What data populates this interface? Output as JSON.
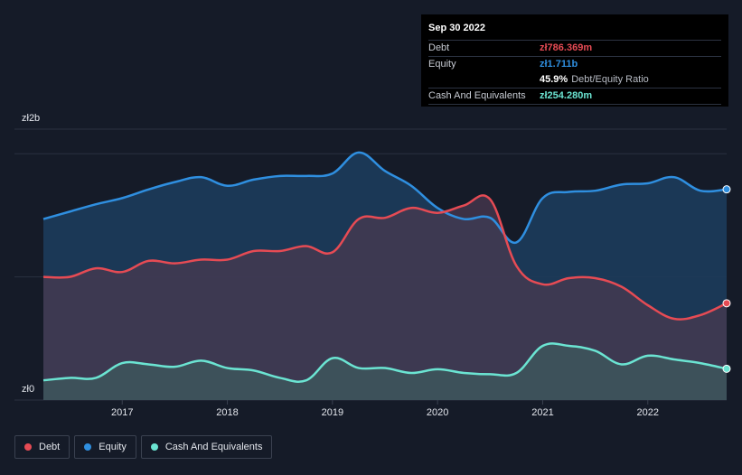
{
  "tooltip": {
    "date": "Sep 30 2022",
    "debt_label": "Debt",
    "debt_value": "zł786.369m",
    "equity_label": "Equity",
    "equity_value": "zł1.711b",
    "ratio_value": "45.9%",
    "ratio_label": "Debt/Equity Ratio",
    "cash_label": "Cash And Equivalents",
    "cash_value": "zł254.280m"
  },
  "colors": {
    "debt": "#e64b54",
    "equity": "#2f8fe0",
    "cash": "#6be4d2",
    "background": "#151b28",
    "tooltip_bg": "#000000"
  },
  "legend": {
    "debt": "Debt",
    "equity": "Equity",
    "cash": "Cash And Equivalents"
  },
  "chart_data": {
    "type": "area",
    "y_top_label": "zł2b",
    "y_bottom_label": "zł0",
    "ylim": [
      0,
      2.2
    ],
    "xlim": [
      2016.25,
      2022.75
    ],
    "x_ticks": [
      "2017",
      "2018",
      "2019",
      "2020",
      "2021",
      "2022"
    ],
    "grid": true,
    "series": [
      {
        "name": "Equity",
        "x": [
          2016.25,
          2016.5,
          2016.75,
          2017.0,
          2017.25,
          2017.5,
          2017.75,
          2018.0,
          2018.25,
          2018.5,
          2018.75,
          2019.0,
          2019.25,
          2019.5,
          2019.75,
          2020.0,
          2020.25,
          2020.5,
          2020.75,
          2021.0,
          2021.25,
          2021.5,
          2021.75,
          2022.0,
          2022.25,
          2022.5,
          2022.75
        ],
        "values": [
          1.47,
          1.53,
          1.59,
          1.64,
          1.71,
          1.77,
          1.81,
          1.74,
          1.79,
          1.82,
          1.82,
          1.84,
          2.01,
          1.86,
          1.74,
          1.56,
          1.47,
          1.48,
          1.28,
          1.64,
          1.69,
          1.7,
          1.75,
          1.76,
          1.81,
          1.7,
          1.711
        ]
      },
      {
        "name": "Debt",
        "x": [
          2016.25,
          2016.5,
          2016.75,
          2017.0,
          2017.25,
          2017.5,
          2017.75,
          2018.0,
          2018.25,
          2018.5,
          2018.75,
          2019.0,
          2019.25,
          2019.5,
          2019.75,
          2020.0,
          2020.25,
          2020.5,
          2020.75,
          2021.0,
          2021.25,
          2021.5,
          2021.75,
          2022.0,
          2022.25,
          2022.5,
          2022.75
        ],
        "values": [
          1.0,
          1.0,
          1.07,
          1.04,
          1.13,
          1.11,
          1.14,
          1.14,
          1.21,
          1.21,
          1.25,
          1.2,
          1.47,
          1.48,
          1.56,
          1.52,
          1.58,
          1.63,
          1.09,
          0.94,
          0.99,
          0.99,
          0.92,
          0.77,
          0.66,
          0.69,
          0.786
        ]
      },
      {
        "name": "Cash And Equivalents",
        "x": [
          2016.25,
          2016.5,
          2016.75,
          2017.0,
          2017.25,
          2017.5,
          2017.75,
          2018.0,
          2018.25,
          2018.5,
          2018.75,
          2019.0,
          2019.25,
          2019.5,
          2019.75,
          2020.0,
          2020.25,
          2020.5,
          2020.75,
          2021.0,
          2021.25,
          2021.5,
          2021.75,
          2022.0,
          2022.25,
          2022.5,
          2022.75
        ],
        "values": [
          0.16,
          0.18,
          0.18,
          0.3,
          0.29,
          0.27,
          0.32,
          0.26,
          0.24,
          0.18,
          0.16,
          0.34,
          0.26,
          0.26,
          0.22,
          0.25,
          0.22,
          0.21,
          0.22,
          0.44,
          0.44,
          0.4,
          0.29,
          0.36,
          0.33,
          0.3,
          0.254
        ]
      }
    ]
  }
}
